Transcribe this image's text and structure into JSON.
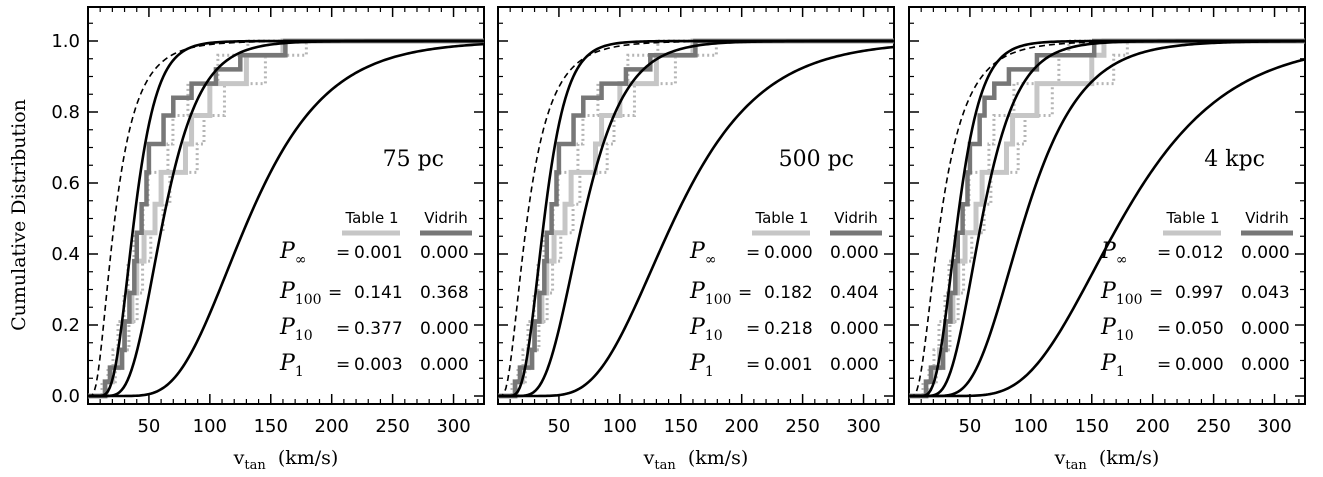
{
  "figure": {
    "ylabel": "Cumulative Distribution",
    "xlabel_main": "v",
    "xlabel_sub": "tan",
    "xlabel_unit": "(km/s)"
  },
  "chart_data": [
    {
      "type": "line",
      "distance_label": "75 pc",
      "xlim": [
        0,
        325
      ],
      "ylim": [
        0,
        1.1
      ],
      "xticks": [
        50,
        100,
        150,
        200,
        250,
        300
      ],
      "yticks": [
        0.0,
        0.2,
        0.4,
        0.6,
        0.8,
        1.0
      ],
      "legend": [
        "Table 1",
        "Vidrih"
      ],
      "stats": [
        {
          "name": "P",
          "sub": "∞",
          "table1": "0.001",
          "vidrih": "0.000"
        },
        {
          "name": "P",
          "sub": "100",
          "table1": "0.141",
          "vidrih": "0.368"
        },
        {
          "name": "P",
          "sub": "10",
          "table1": "0.377",
          "vidrih": "0.000"
        },
        {
          "name": "P",
          "sub": "1",
          "table1": "0.003",
          "vidrih": "0.000"
        }
      ],
      "model_curves_median": [
        38,
        62,
        132
      ],
      "dashed_curve_median": 22,
      "table1_steps": [
        [
          14,
          0.04
        ],
        [
          20,
          0.08
        ],
        [
          25,
          0.13
        ],
        [
          30,
          0.21
        ],
        [
          36,
          0.29
        ],
        [
          40,
          0.38
        ],
        [
          46,
          0.46
        ],
        [
          55,
          0.54
        ],
        [
          60,
          0.63
        ],
        [
          80,
          0.71
        ],
        [
          85,
          0.79
        ],
        [
          100,
          0.88
        ],
        [
          130,
          0.96
        ],
        [
          160,
          1.0
        ]
      ],
      "vidrih_steps": [
        [
          14,
          0.04
        ],
        [
          18,
          0.08
        ],
        [
          28,
          0.13
        ],
        [
          30,
          0.21
        ],
        [
          34,
          0.29
        ],
        [
          38,
          0.38
        ],
        [
          40,
          0.46
        ],
        [
          44,
          0.54
        ],
        [
          48,
          0.63
        ],
        [
          50,
          0.71
        ],
        [
          62,
          0.79
        ],
        [
          70,
          0.84
        ],
        [
          85,
          0.88
        ],
        [
          105,
          0.92
        ],
        [
          125,
          0.96
        ],
        [
          162,
          1.0
        ]
      ]
    },
    {
      "type": "line",
      "distance_label": "500 pc",
      "xlim": [
        0,
        325
      ],
      "ylim": [
        0,
        1.1
      ],
      "xticks": [
        50,
        100,
        150,
        200,
        250,
        300
      ],
      "yticks": [
        0.0,
        0.2,
        0.4,
        0.6,
        0.8,
        1.0
      ],
      "legend": [
        "Table 1",
        "Vidrih"
      ],
      "stats": [
        {
          "name": "P",
          "sub": "∞",
          "table1": "0.000",
          "vidrih": "0.000"
        },
        {
          "name": "P",
          "sub": "100",
          "table1": "0.182",
          "vidrih": "0.404"
        },
        {
          "name": "P",
          "sub": "10",
          "table1": "0.218",
          "vidrih": "0.000"
        },
        {
          "name": "P",
          "sub": "1",
          "table1": "0.001",
          "vidrih": "0.000"
        }
      ],
      "model_curves_median": [
        38,
        70,
        145
      ],
      "dashed_curve_median": 24,
      "table1_steps": [
        [
          14,
          0.04
        ],
        [
          20,
          0.08
        ],
        [
          25,
          0.13
        ],
        [
          30,
          0.21
        ],
        [
          36,
          0.29
        ],
        [
          40,
          0.38
        ],
        [
          46,
          0.46
        ],
        [
          55,
          0.54
        ],
        [
          60,
          0.63
        ],
        [
          80,
          0.71
        ],
        [
          85,
          0.79
        ],
        [
          100,
          0.88
        ],
        [
          130,
          0.96
        ],
        [
          160,
          1.0
        ]
      ],
      "vidrih_steps": [
        [
          14,
          0.04
        ],
        [
          18,
          0.08
        ],
        [
          28,
          0.13
        ],
        [
          30,
          0.21
        ],
        [
          34,
          0.29
        ],
        [
          38,
          0.38
        ],
        [
          40,
          0.46
        ],
        [
          44,
          0.54
        ],
        [
          48,
          0.63
        ],
        [
          50,
          0.71
        ],
        [
          62,
          0.79
        ],
        [
          70,
          0.84
        ],
        [
          85,
          0.88
        ],
        [
          105,
          0.92
        ],
        [
          125,
          0.96
        ],
        [
          162,
          1.0
        ]
      ]
    },
    {
      "type": "line",
      "distance_label": "4 kpc",
      "xlim": [
        0,
        325
      ],
      "ylim": [
        0,
        1.1
      ],
      "xticks": [
        50,
        100,
        150,
        200,
        250,
        300
      ],
      "yticks": [
        0.0,
        0.2,
        0.4,
        0.6,
        0.8,
        1.0
      ],
      "legend": [
        "Table 1",
        "Vidrih"
      ],
      "stats": [
        {
          "name": "P",
          "sub": "∞",
          "table1": "0.012",
          "vidrih": "0.000"
        },
        {
          "name": "P",
          "sub": "100",
          "table1": "0.997",
          "vidrih": "0.043"
        },
        {
          "name": "P",
          "sub": "10",
          "table1": "0.050",
          "vidrih": "0.000"
        },
        {
          "name": "P",
          "sub": "1",
          "table1": "0.000",
          "vidrih": "0.000"
        }
      ],
      "model_curves_median": [
        40,
        60,
        95,
        175
      ],
      "dashed_curve_median": 26,
      "table1_steps": [
        [
          14,
          0.04
        ],
        [
          20,
          0.08
        ],
        [
          25,
          0.13
        ],
        [
          30,
          0.21
        ],
        [
          36,
          0.29
        ],
        [
          40,
          0.38
        ],
        [
          46,
          0.46
        ],
        [
          55,
          0.54
        ],
        [
          60,
          0.63
        ],
        [
          80,
          0.71
        ],
        [
          85,
          0.79
        ],
        [
          105,
          0.88
        ],
        [
          150,
          0.96
        ],
        [
          160,
          1.0
        ]
      ],
      "vidrih_steps": [
        [
          14,
          0.04
        ],
        [
          18,
          0.08
        ],
        [
          28,
          0.13
        ],
        [
          30,
          0.21
        ],
        [
          34,
          0.29
        ],
        [
          38,
          0.38
        ],
        [
          40,
          0.46
        ],
        [
          44,
          0.54
        ],
        [
          48,
          0.63
        ],
        [
          50,
          0.71
        ],
        [
          58,
          0.79
        ],
        [
          62,
          0.84
        ],
        [
          70,
          0.88
        ],
        [
          82,
          0.92
        ],
        [
          105,
          0.96
        ],
        [
          152,
          1.0
        ]
      ]
    }
  ],
  "colors": {
    "table1": "#c6c6c6",
    "vidrih": "#777777",
    "model": "#000000",
    "dotted": "#b5b5b5"
  }
}
